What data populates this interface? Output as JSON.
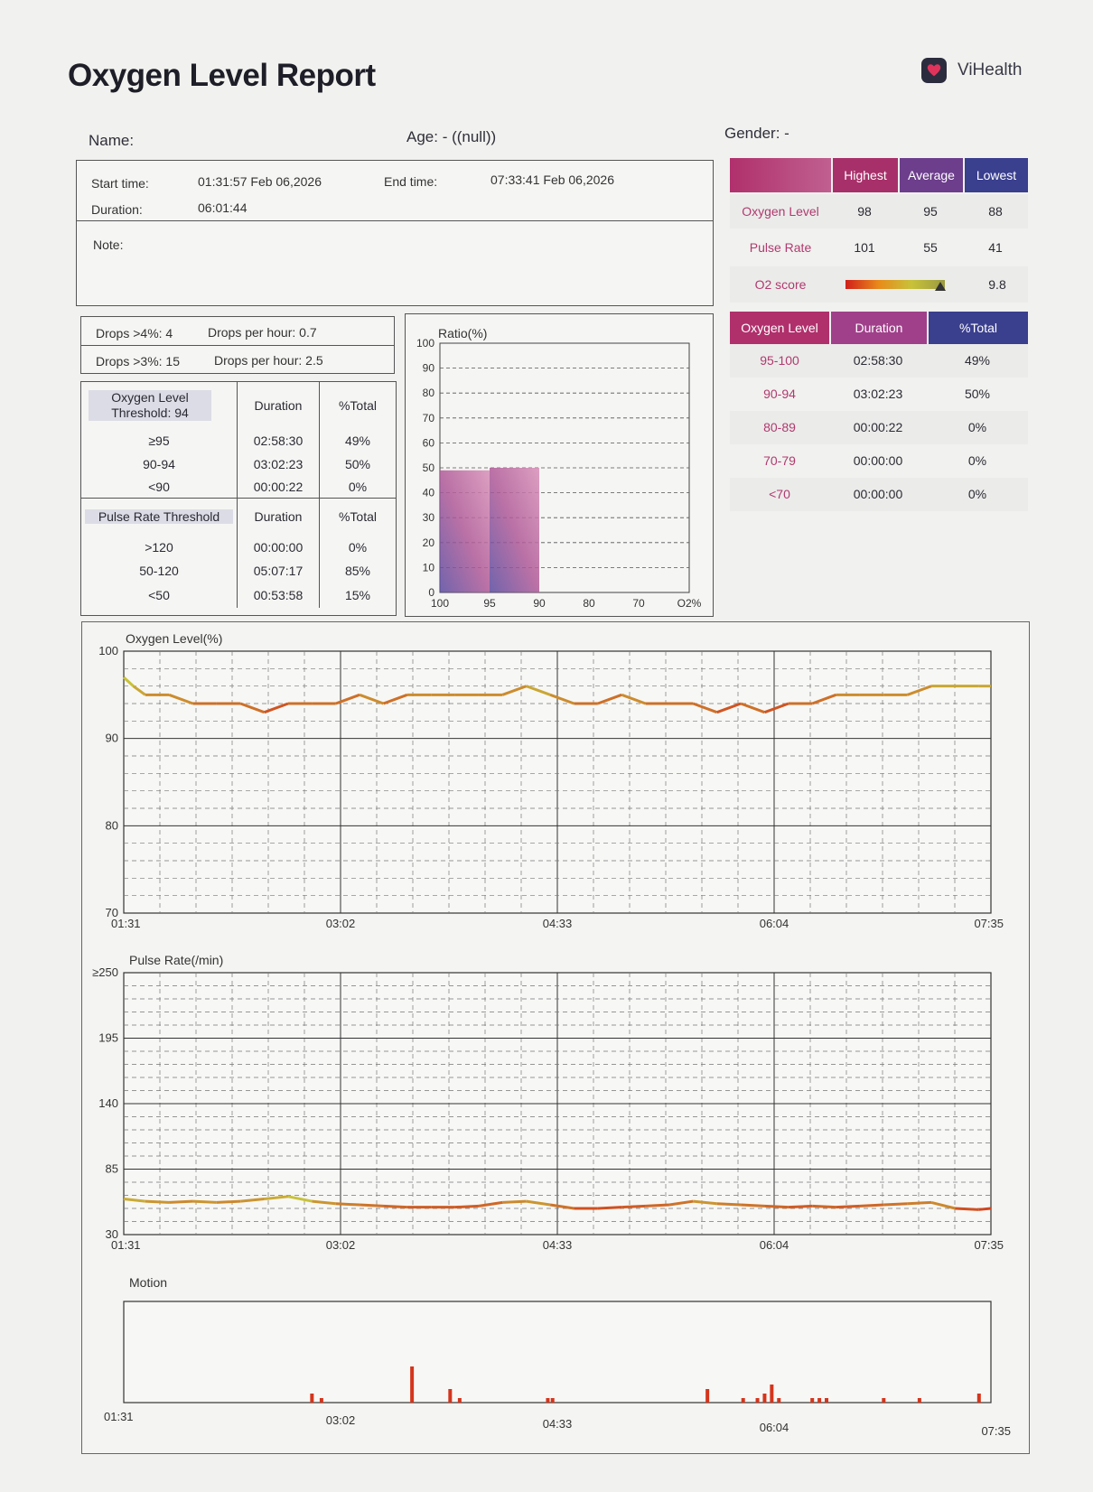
{
  "header": {
    "title": "Oxygen Level Report",
    "brand": "ViHealth"
  },
  "patient": {
    "name_label": "Name:",
    "age_label": "Age: -  ((null))",
    "gender_label": "Gender: -"
  },
  "session": {
    "start_label": "Start time:",
    "start_value": "01:31:57 Feb 06,2026",
    "end_label": "End time:",
    "end_value": "07:33:41 Feb 06,2026",
    "duration_label": "Duration:",
    "duration_value": "06:01:44",
    "note_label": "Note:"
  },
  "drops": [
    {
      "label": "Drops >4%: 4",
      "per_hour": "Drops per hour: 0.7"
    },
    {
      "label": "Drops >3%: 15",
      "per_hour": "Drops per hour: 2.5"
    }
  ],
  "oxygen_threshold": {
    "header": [
      "Oxygen Level\nThreshold: 94",
      "Duration",
      "%Total"
    ],
    "rows": [
      [
        "≥95",
        "02:58:30",
        "49%"
      ],
      [
        "90-94",
        "03:02:23",
        "50%"
      ],
      [
        "<90",
        "00:00:22",
        "0%"
      ]
    ]
  },
  "pulse_threshold": {
    "header": [
      "Pulse Rate Threshold",
      "Duration",
      "%Total"
    ],
    "rows": [
      [
        ">120",
        "00:00:00",
        "0%"
      ],
      [
        "50-120",
        "05:07:17",
        "85%"
      ],
      [
        "<50",
        "00:53:58",
        "15%"
      ]
    ]
  },
  "summary": {
    "header": [
      "Highest",
      "Average",
      "Lowest"
    ],
    "rows": [
      {
        "label": "Oxygen Level",
        "values": [
          "98",
          "95",
          "88"
        ]
      },
      {
        "label": "Pulse Rate",
        "values": [
          "101",
          "55",
          "41"
        ]
      }
    ],
    "o2_score_label": "O2 score",
    "o2_score": "9.8",
    "o2_score_fraction": 0.95
  },
  "level_table": {
    "header": [
      "Oxygen Level",
      "Duration",
      "%Total"
    ],
    "rows": [
      [
        "95-100",
        "02:58:30",
        "49%"
      ],
      [
        "90-94",
        "03:02:23",
        "50%"
      ],
      [
        "80-89",
        "00:00:22",
        "0%"
      ],
      [
        "70-79",
        "00:00:00",
        "0%"
      ],
      [
        "<70",
        "00:00:00",
        "0%"
      ]
    ]
  },
  "colors": {
    "accent": "#a8306a",
    "brand_dark": "#2b2d3e",
    "low": "#d23a1c",
    "high": "#c8c23a"
  },
  "chart_data": [
    {
      "type": "bar",
      "title": "Ratio(%)",
      "ylim": [
        0,
        100
      ],
      "yticks": [
        "0",
        "10",
        "20",
        "30",
        "40",
        "50",
        "60",
        "70",
        "80",
        "90",
        "100"
      ],
      "xticks": [
        "100",
        "95",
        "90",
        "80",
        "70",
        "O2%"
      ],
      "categories": [
        "95-100",
        "90-94",
        "80-89",
        "70-79"
      ],
      "values": [
        49,
        50,
        0,
        0
      ]
    },
    {
      "type": "line",
      "title": "Oxygen Level(%)",
      "ylim": [
        70,
        100
      ],
      "yticks": [
        "70",
        "80",
        "90",
        "100"
      ],
      "xticks": [
        "01:31",
        "03:02",
        "04:33",
        "06:04",
        "07:35"
      ],
      "series": [
        {
          "x": [
            "01:31",
            "01:35",
            "01:40",
            "01:50",
            "02:00",
            "02:10",
            "02:20",
            "02:30",
            "02:40",
            "02:50",
            "03:00",
            "03:10",
            "03:20",
            "03:30",
            "03:40",
            "03:50",
            "04:00",
            "04:10",
            "04:20",
            "04:30",
            "04:40",
            "04:50",
            "05:00",
            "05:10",
            "05:20",
            "05:30",
            "05:40",
            "05:50",
            "06:00",
            "06:10",
            "06:20",
            "06:30",
            "06:40",
            "06:50",
            "07:00",
            "07:10",
            "07:20",
            "07:30",
            "07:35"
          ],
          "values": [
            97,
            96,
            95,
            95,
            94,
            94,
            94,
            93,
            94,
            94,
            94,
            95,
            94,
            95,
            95,
            95,
            95,
            95,
            96,
            95,
            94,
            94,
            95,
            94,
            94,
            94,
            93,
            94,
            93,
            94,
            94,
            95,
            95,
            95,
            95,
            96,
            96,
            96,
            96
          ]
        }
      ]
    },
    {
      "type": "line",
      "title": "Pulse Rate(/min)",
      "ylim": [
        30,
        250
      ],
      "yticks": [
        "30",
        "85",
        "140",
        "195",
        "≥250"
      ],
      "xticks": [
        "01:31",
        "03:02",
        "04:33",
        "06:04",
        "07:35"
      ],
      "series": [
        {
          "x": [
            "01:31",
            "01:40",
            "01:50",
            "02:00",
            "02:10",
            "02:20",
            "02:30",
            "02:40",
            "02:50",
            "03:00",
            "03:10",
            "03:20",
            "03:30",
            "03:40",
            "03:50",
            "04:00",
            "04:10",
            "04:20",
            "04:30",
            "04:40",
            "04:50",
            "05:00",
            "05:10",
            "05:20",
            "05:30",
            "05:40",
            "05:50",
            "06:00",
            "06:10",
            "06:20",
            "06:30",
            "06:40",
            "06:50",
            "07:00",
            "07:10",
            "07:20",
            "07:30",
            "07:35"
          ],
          "values": [
            60,
            58,
            57,
            58,
            57,
            58,
            60,
            62,
            58,
            56,
            55,
            54,
            53,
            53,
            53,
            54,
            57,
            58,
            55,
            52,
            52,
            53,
            54,
            55,
            58,
            56,
            55,
            54,
            53,
            54,
            53,
            54,
            55,
            56,
            57,
            52,
            51,
            52
          ]
        }
      ]
    },
    {
      "type": "bar",
      "title": "Motion",
      "xticks": [
        "01:31",
        "03:02",
        "04:33",
        "06:04",
        "07:35"
      ],
      "x": [
        "02:50",
        "02:54",
        "03:32",
        "03:48",
        "03:52",
        "04:29",
        "04:31",
        "05:36",
        "05:51",
        "05:57",
        "06:00",
        "06:03",
        "06:06",
        "06:20",
        "06:23",
        "06:26",
        "06:50",
        "07:05",
        "07:30"
      ],
      "values": [
        2,
        1,
        8,
        3,
        1,
        1,
        1,
        3,
        1,
        1,
        2,
        4,
        1,
        1,
        1,
        1,
        1,
        1,
        2
      ]
    }
  ]
}
